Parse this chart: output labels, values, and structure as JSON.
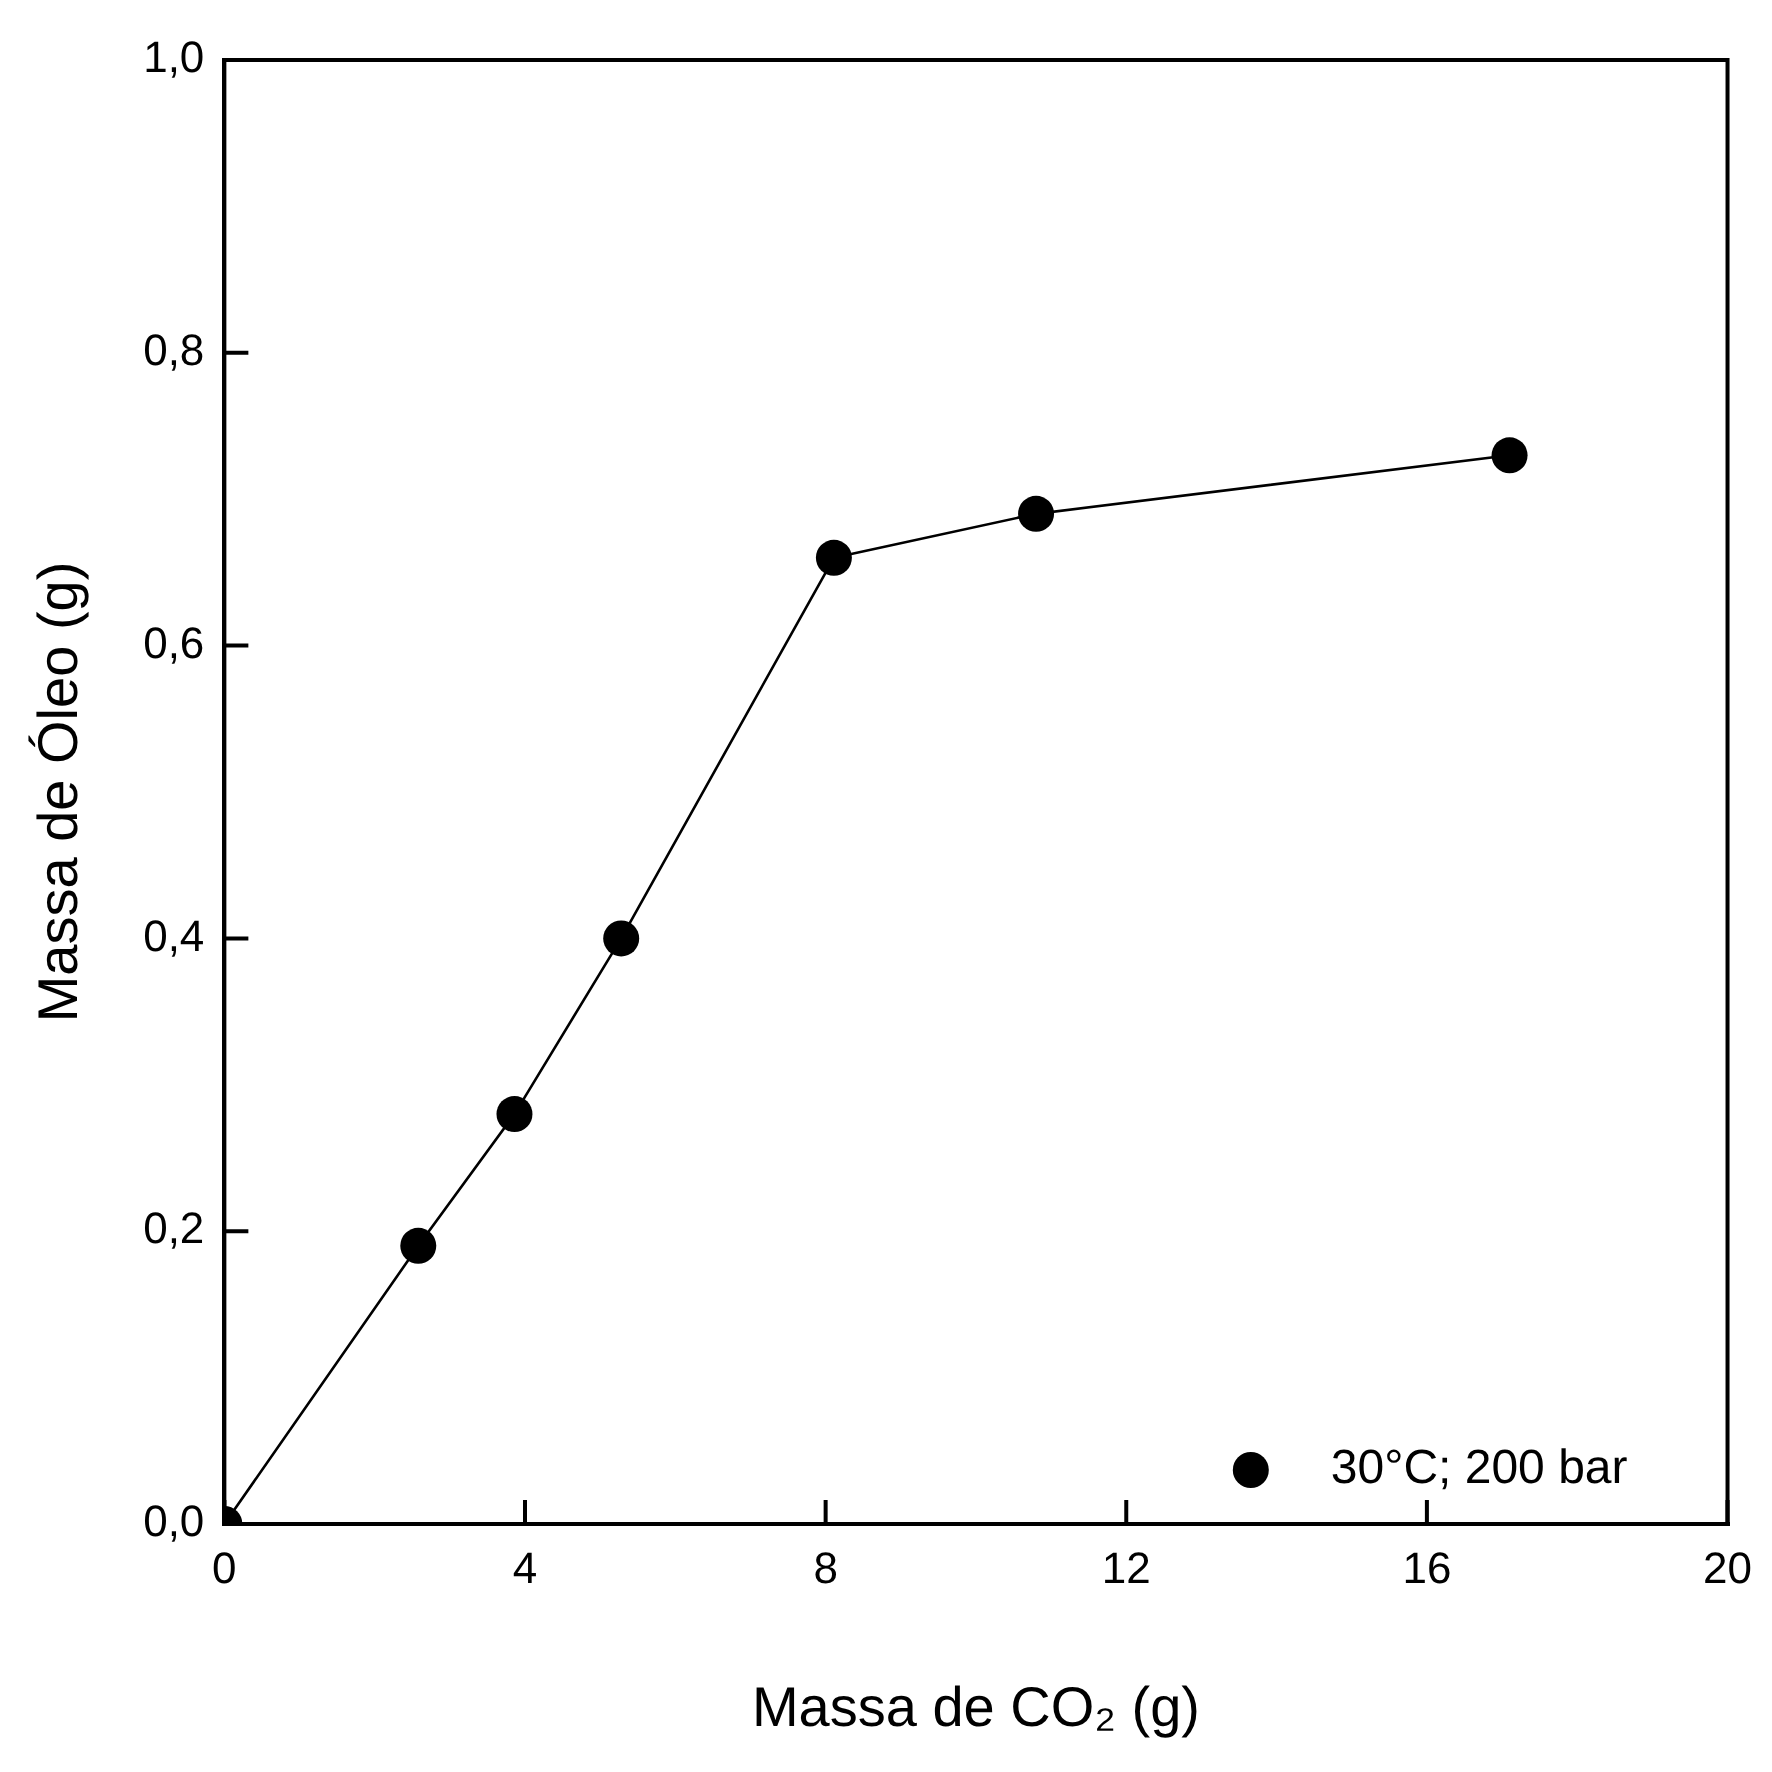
{
  "chart_data": {
    "type": "line",
    "xlabel": "Massa de CO₂ (g)",
    "ylabel": "Massa de Óleo (g)",
    "x": [
      0,
      2.58,
      3.86,
      5.28,
      8.11,
      10.8,
      17.1
    ],
    "series": [
      {
        "name": "30°C; 200 bar",
        "color": "#000000",
        "values": [
          0,
          0.19,
          0.28,
          0.4,
          0.66,
          0.69,
          0.73
        ]
      }
    ],
    "xlim": [
      0,
      20
    ],
    "xticks": [
      0,
      4,
      8,
      12,
      16,
      20
    ],
    "ylim": [
      0,
      1
    ],
    "yticks": [
      {
        "value": 0,
        "label": "0,0"
      },
      {
        "value": 0.2,
        "label": "0,2"
      },
      {
        "value": 0.4,
        "label": "0,4"
      },
      {
        "value": 0.6,
        "label": "0,6"
      },
      {
        "value": 0.8,
        "label": "0,8"
      },
      {
        "value": 1,
        "label": "1,0"
      }
    ],
    "grid": false,
    "legend": "bottom right",
    "marker": "circle",
    "line_style": "solid"
  }
}
